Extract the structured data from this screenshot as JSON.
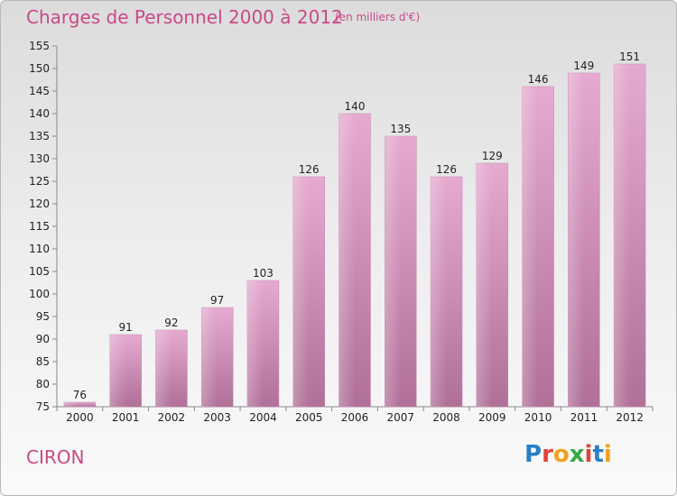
{
  "header": {
    "title": "Charges de Personnel 2000 à 2012",
    "subtitle": "(en milliers d'€)"
  },
  "footer": {
    "commune": "CIRON",
    "logo_text": "Proxiti"
  },
  "colors": {
    "bar_light": "#e6aad0",
    "bar_dark": "#b07098",
    "title": "#c84a86"
  },
  "chart_data": {
    "type": "bar",
    "title": "Charges de Personnel 2000 à 2012",
    "subtitle": "(en milliers d'€)",
    "xlabel": "",
    "ylabel": "",
    "categories": [
      "2000",
      "2001",
      "2002",
      "2003",
      "2004",
      "2005",
      "2006",
      "2007",
      "2008",
      "2009",
      "2010",
      "2011",
      "2012"
    ],
    "values": [
      76,
      91,
      92,
      97,
      103,
      126,
      140,
      135,
      126,
      129,
      146,
      149,
      151
    ],
    "ylim": [
      75,
      155
    ],
    "yticks": [
      75,
      80,
      85,
      90,
      95,
      100,
      105,
      110,
      115,
      120,
      125,
      130,
      135,
      140,
      145,
      150,
      155
    ],
    "grid": false,
    "legend": "none"
  }
}
